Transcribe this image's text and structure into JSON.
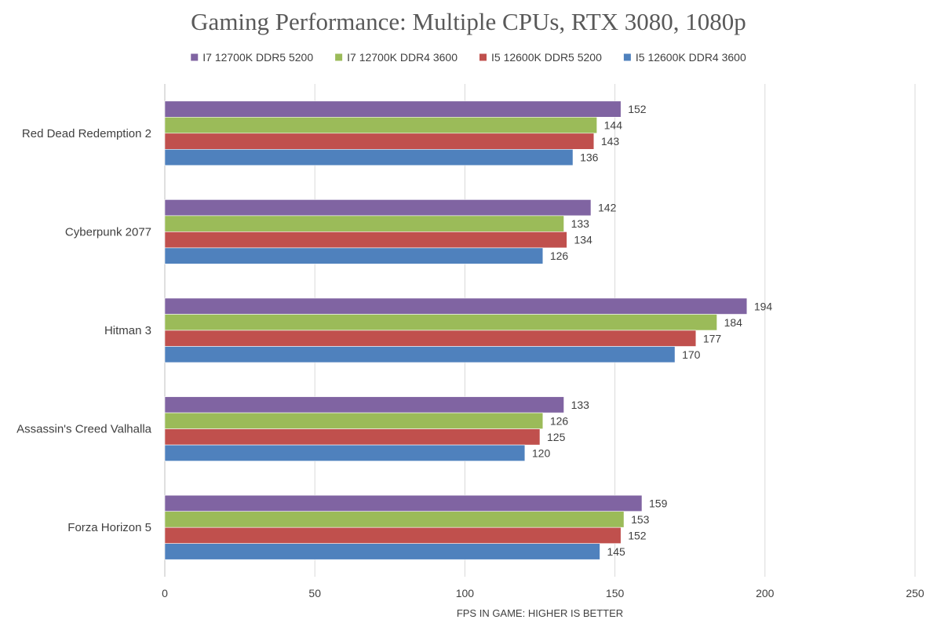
{
  "chart_data": {
    "type": "bar",
    "orientation": "horizontal",
    "title": "Gaming Performance: Multiple CPUs, RTX 3080, 1080p",
    "xlabel": "FPS IN GAME: HIGHER IS BETTER",
    "ylabel": "",
    "xlim": [
      0,
      250
    ],
    "x_ticks": [
      0,
      50,
      100,
      150,
      200,
      250
    ],
    "grid": "vertical",
    "legend_position": "top",
    "categories": [
      "Red Dead Redemption 2",
      "Cyberpunk 2077",
      "Hitman 3",
      "Assassin's Creed Valhalla",
      "Forza Horizon 5"
    ],
    "series": [
      {
        "name": "I7 12700K DDR5 5200",
        "color": "#8064a2",
        "values": [
          152,
          142,
          194,
          133,
          159
        ]
      },
      {
        "name": "I7 12700K DDR4 3600",
        "color": "#9bbb59",
        "values": [
          144,
          133,
          184,
          126,
          153
        ]
      },
      {
        "name": "I5 12600K DDR5 5200",
        "color": "#c0504d",
        "values": [
          143,
          134,
          177,
          125,
          152
        ]
      },
      {
        "name": "I5 12600K DDR4 3600",
        "color": "#4f81bd",
        "values": [
          136,
          126,
          170,
          120,
          145
        ]
      }
    ]
  }
}
